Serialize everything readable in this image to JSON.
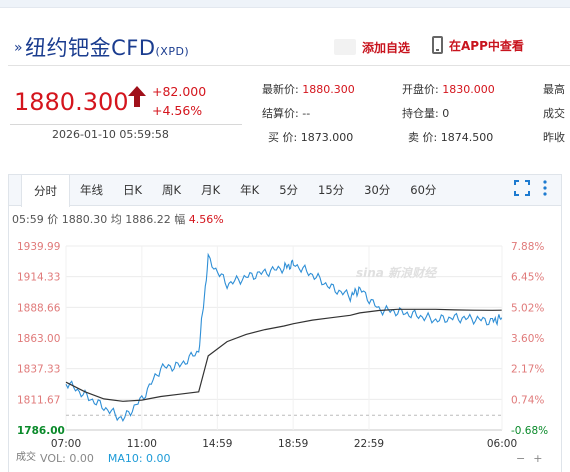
{
  "header": {
    "title": "纽约钯金CFD",
    "code": "(XPD)",
    "add_watch": "添加自选",
    "app_view": "在APP中查看"
  },
  "quote": {
    "price": "1880.300",
    "change": "+82.000",
    "change_pct": "+4.56%",
    "timestamp": "2026-01-10 05:59:58"
  },
  "stats": [
    {
      "label": "最新价:",
      "value": "1880.300",
      "tone": "red"
    },
    {
      "label": "开盘价:",
      "value": "1830.000",
      "tone": "red"
    },
    {
      "label": "最高",
      "value": "",
      "tone": ""
    },
    {
      "label": "结算价:",
      "value": "--",
      "tone": ""
    },
    {
      "label": "持仓量:",
      "value": "0",
      "tone": ""
    },
    {
      "label": "成交",
      "value": "",
      "tone": ""
    },
    {
      "label": "买  价:",
      "value": "1873.000",
      "tone": ""
    },
    {
      "label": "卖  价:",
      "value": "1874.500",
      "tone": ""
    },
    {
      "label": "昨收",
      "value": "",
      "tone": ""
    }
  ],
  "tabs": [
    "分时",
    "年线",
    "日K",
    "周K",
    "月K",
    "年K",
    "5分",
    "15分",
    "30分",
    "60分"
  ],
  "infoline": {
    "time": "05:59",
    "price_label": "价",
    "price": "1880.30",
    "avg_label": "均",
    "avg": "1886.22",
    "amp_label": "幅",
    "amp": "4.56%"
  },
  "watermark": "sina 新浪财经",
  "bottom": {
    "left_label": "成交",
    "vol": "VOL: 0.00",
    "ma": "MA10: 0.00"
  },
  "chart_data": {
    "type": "line",
    "y_ticks_left": [
      "1939.99",
      "1914.33",
      "1888.66",
      "1863.00",
      "1837.33",
      "1811.67",
      "1786.00"
    ],
    "y_ticks_right": [
      "7.88%",
      "6.45%",
      "5.02%",
      "3.60%",
      "2.17%",
      "0.74%",
      "-0.68%"
    ],
    "x_ticks": [
      "07:00",
      "11:00",
      "14:59",
      "18:59",
      "22:59",
      "06:00"
    ],
    "ylim": [
      1786.0,
      1939.99
    ],
    "prev_close": 1798.3,
    "series": [
      {
        "name": "价",
        "color": "#2f8fd6",
        "x": [
          "07:00",
          "08:00",
          "09:00",
          "10:00",
          "11:00",
          "12:00",
          "13:00",
          "14:00",
          "14:30",
          "15:30",
          "16:30",
          "17:30",
          "18:30",
          "19:00",
          "20:00",
          "21:00",
          "22:00",
          "22:30",
          "23:30",
          "00:30",
          "01:30",
          "02:30",
          "03:30",
          "04:30",
          "05:30",
          "05:59"
        ],
        "values": [
          1826,
          1815,
          1805,
          1795,
          1812,
          1838,
          1840,
          1852,
          1929,
          1908,
          1914,
          1918,
          1922,
          1925,
          1916,
          1905,
          1898,
          1904,
          1887,
          1885,
          1882,
          1878,
          1880,
          1879,
          1877,
          1880
        ]
      },
      {
        "name": "均",
        "color": "#333333",
        "x": [
          "07:00",
          "08:00",
          "09:00",
          "10:00",
          "11:00",
          "12:00",
          "13:00",
          "14:00",
          "14:30",
          "15:30",
          "16:30",
          "17:30",
          "18:30",
          "19:00",
          "20:00",
          "21:00",
          "22:00",
          "22:30",
          "23:30",
          "00:30",
          "01:30",
          "02:30",
          "03:30",
          "04:30",
          "05:30",
          "05:59"
        ],
        "values": [
          1826,
          1818,
          1812,
          1810,
          1811,
          1814,
          1816,
          1818,
          1848,
          1860,
          1866,
          1870,
          1873,
          1875,
          1878,
          1880,
          1882,
          1884,
          1886,
          1887,
          1887,
          1887,
          1886.5,
          1886.3,
          1886.2,
          1886.22
        ]
      }
    ]
  }
}
